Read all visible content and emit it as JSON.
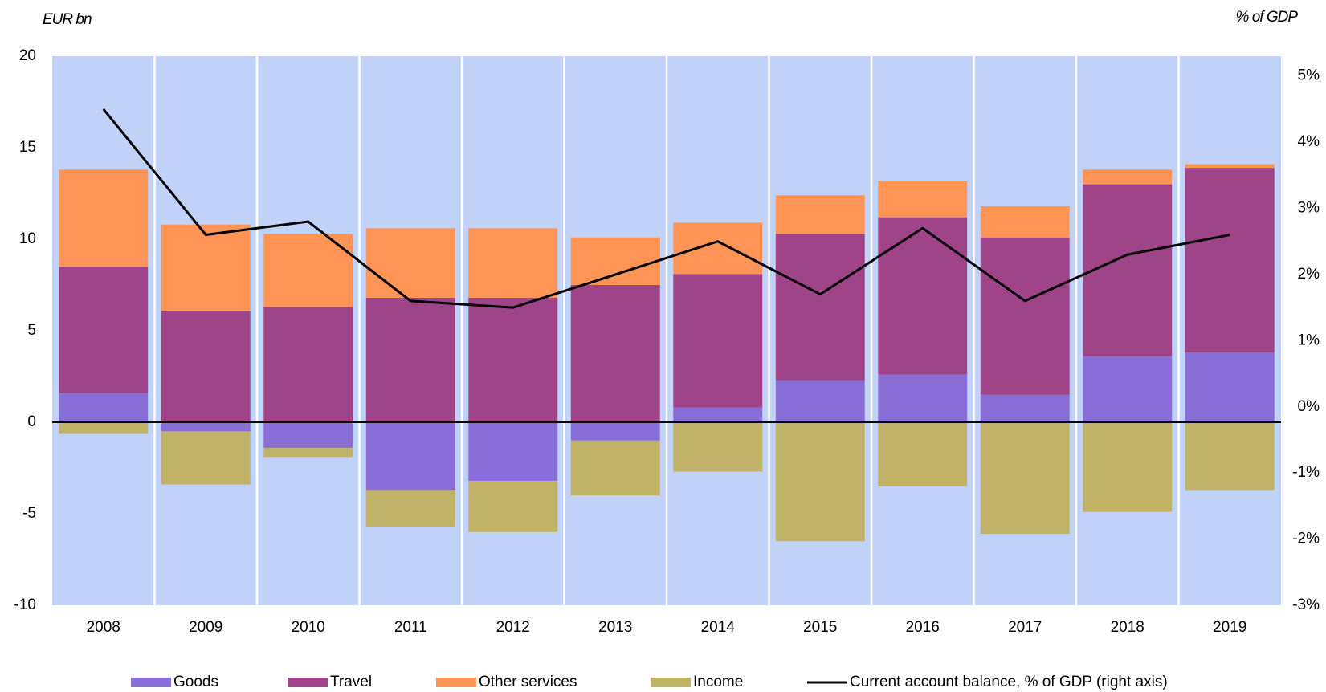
{
  "chart_data": {
    "type": "bar",
    "y_label": "EUR bn",
    "y2_label": "% of GDP",
    "categories": [
      "2008",
      "2009",
      "2010",
      "2011",
      "2012",
      "2013",
      "2014",
      "2015",
      "2016",
      "2017",
      "2018",
      "2019"
    ],
    "series": [
      {
        "name": "Goods",
        "color": "#8a6ed8",
        "values": [
          1.6,
          -0.5,
          -1.4,
          -3.7,
          -3.2,
          -1.0,
          0.8,
          2.3,
          2.6,
          1.5,
          3.6,
          3.8
        ]
      },
      {
        "name": "Travel",
        "color": "#a0448a",
        "values": [
          6.9,
          6.1,
          6.3,
          6.8,
          6.8,
          7.5,
          7.3,
          8.0,
          8.6,
          8.6,
          9.4,
          10.1
        ]
      },
      {
        "name": "Other services",
        "color": "#fe9556",
        "values": [
          5.3,
          4.7,
          4.0,
          3.8,
          3.8,
          2.6,
          2.8,
          2.1,
          2.0,
          1.7,
          0.8,
          0.2
        ]
      },
      {
        "name": "Income",
        "color": "#c0b266",
        "values": [
          -0.6,
          -2.9,
          -0.5,
          -2.0,
          -2.8,
          -3.0,
          -2.7,
          -6.5,
          -3.5,
          -6.1,
          -4.9,
          -3.7
        ]
      },
      {
        "name": "Current account balance, % of GDP (right axis)",
        "color": "#000000",
        "type": "line",
        "axis": "y2",
        "values": [
          4.5,
          2.6,
          2.8,
          1.6,
          1.5,
          2.0,
          2.5,
          1.7,
          2.7,
          1.6,
          2.3,
          2.6
        ]
      }
    ],
    "ylim": [
      -10,
      20
    ],
    "yticks": [
      -10,
      -5,
      0,
      5,
      10,
      15,
      20
    ],
    "y2lim": [
      -3,
      5.3
    ],
    "y2ticks": [
      {
        "value": -3,
        "label": "-3%"
      },
      {
        "value": -2,
        "label": "-2%"
      },
      {
        "value": -1,
        "label": "-1%"
      },
      {
        "value": 0,
        "label": "0%"
      },
      {
        "value": 1,
        "label": "1%"
      },
      {
        "value": 2,
        "label": "2%"
      },
      {
        "value": 3,
        "label": "3%"
      },
      {
        "value": 4,
        "label": "4%"
      },
      {
        "value": 5,
        "label": "5%"
      }
    ],
    "plot_background": "#c0d2f8",
    "grid": true,
    "legend": "bottom"
  }
}
